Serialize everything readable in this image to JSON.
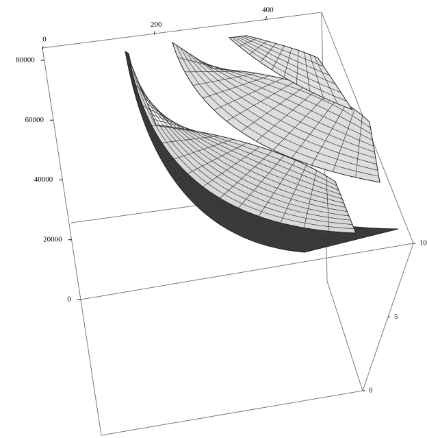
{
  "chart_data": {
    "type": "surface3d",
    "xlim": [
      0,
      500
    ],
    "xticks": [
      0,
      200,
      400
    ],
    "ylim": [
      0,
      10
    ],
    "yticks": [
      0,
      5,
      10
    ],
    "zlim": [
      0,
      80000
    ],
    "zticks": [
      0,
      20000,
      40000,
      60000,
      80000
    ]
  }
}
